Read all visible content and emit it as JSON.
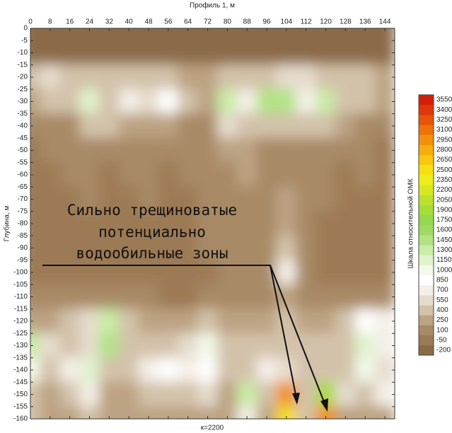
{
  "chart_data": {
    "type": "heatmap",
    "title": "Профиль 1, м",
    "y_label": "Глубина, м",
    "note": "к=2200",
    "annotation": [
      "Сильно трещиноватые",
      "потенциально",
      "водообильные зоны"
    ],
    "xlim": [
      0,
      148
    ],
    "ylim": [
      0,
      -160
    ],
    "xticks": [
      0,
      8,
      16,
      24,
      32,
      40,
      48,
      56,
      64,
      72,
      80,
      88,
      96,
      104,
      112,
      120,
      128,
      136,
      144
    ],
    "yticks": [
      0,
      -5,
      -10,
      -15,
      -20,
      -25,
      -30,
      -35,
      -40,
      -45,
      -50,
      -55,
      -60,
      -65,
      -70,
      -75,
      -80,
      -85,
      -90,
      -95,
      -100,
      -105,
      -110,
      -115,
      -120,
      -125,
      -130,
      -135,
      -140,
      -145,
      -150,
      -155,
      -160
    ],
    "x": [
      0,
      8,
      16,
      24,
      32,
      40,
      48,
      56,
      64,
      72,
      80,
      88,
      96,
      104,
      112,
      120,
      128,
      136,
      144
    ],
    "y": [
      0,
      -10,
      -20,
      -30,
      -40,
      -50,
      -60,
      -70,
      -80,
      -90,
      -100,
      -110,
      -120,
      -130,
      -140,
      -150,
      -160
    ],
    "z": [
      [
        -150,
        -150,
        -150,
        -150,
        -150,
        -150,
        -150,
        -150,
        -150,
        -150,
        -150,
        -150,
        -150,
        -150,
        -150,
        -150,
        -150,
        -150,
        -150
      ],
      [
        -100,
        -100,
        -100,
        -100,
        -100,
        -100,
        -100,
        -100,
        -100,
        -100,
        -100,
        -100,
        -100,
        -100,
        -100,
        -100,
        -100,
        -100,
        -100
      ],
      [
        500,
        600,
        500,
        500,
        400,
        500,
        500,
        400,
        300,
        300,
        400,
        500,
        500,
        600,
        600,
        500,
        500,
        400,
        300
      ],
      [
        300,
        400,
        500,
        1200,
        500,
        700,
        600,
        900,
        400,
        300,
        1400,
        700,
        1500,
        1500,
        700,
        1300,
        500,
        400,
        300
      ],
      [
        100,
        200,
        200,
        400,
        500,
        300,
        300,
        300,
        200,
        200,
        600,
        400,
        400,
        500,
        400,
        400,
        300,
        200,
        100
      ],
      [
        0,
        100,
        100,
        200,
        100,
        100,
        200,
        100,
        100,
        200,
        300,
        300,
        200,
        200,
        100,
        100,
        100,
        100,
        0
      ],
      [
        0,
        0,
        100,
        100,
        0,
        100,
        100,
        0,
        100,
        200,
        200,
        300,
        100,
        200,
        100,
        100,
        0,
        100,
        0
      ],
      [
        0,
        0,
        0,
        100,
        0,
        0,
        100,
        0,
        0,
        100,
        100,
        200,
        100,
        300,
        100,
        100,
        0,
        0,
        0
      ],
      [
        0,
        0,
        0,
        0,
        0,
        0,
        0,
        0,
        0,
        100,
        100,
        200,
        100,
        300,
        100,
        0,
        0,
        0,
        0
      ],
      [
        0,
        0,
        0,
        0,
        0,
        0,
        0,
        0,
        0,
        100,
        100,
        200,
        100,
        400,
        100,
        0,
        0,
        0,
        0
      ],
      [
        0,
        0,
        0,
        0,
        0,
        0,
        0,
        0,
        0,
        0,
        100,
        200,
        100,
        700,
        100,
        0,
        0,
        0,
        0
      ],
      [
        100,
        100,
        100,
        100,
        100,
        100,
        100,
        0,
        0,
        100,
        100,
        200,
        100,
        300,
        200,
        200,
        200,
        200,
        100
      ],
      [
        300,
        300,
        400,
        600,
        1400,
        500,
        300,
        300,
        300,
        400,
        300,
        300,
        300,
        400,
        300,
        300,
        400,
        900,
        700
      ],
      [
        1400,
        600,
        500,
        600,
        1500,
        500,
        400,
        500,
        600,
        1000,
        500,
        500,
        400,
        500,
        400,
        400,
        500,
        1200,
        800
      ],
      [
        1100,
        500,
        700,
        1200,
        500,
        400,
        700,
        900,
        800,
        900,
        500,
        500,
        700,
        600,
        500,
        500,
        500,
        1000,
        600
      ],
      [
        500,
        300,
        500,
        800,
        300,
        300,
        400,
        400,
        400,
        600,
        300,
        1300,
        500,
        3000,
        500,
        2000,
        600,
        400,
        700
      ],
      [
        400,
        300,
        300,
        400,
        300,
        300,
        300,
        300,
        300,
        300,
        300,
        700,
        300,
        2600,
        400,
        3000,
        300,
        300,
        300
      ]
    ],
    "colorbar": {
      "label": "Шкала относительной ОМК",
      "ticks": [
        -200,
        -50,
        100,
        250,
        400,
        550,
        700,
        850,
        1000,
        1150,
        1300,
        1450,
        1600,
        1750,
        1900,
        2050,
        2200,
        2350,
        2500,
        2650,
        2800,
        2950,
        3100,
        3250,
        3400,
        3550
      ],
      "colors": [
        "#8b6a48",
        "#9c7a55",
        "#a88a66",
        "#bca383",
        "#d3c2aa",
        "#e6dccd",
        "#f4efe8",
        "#ffffff",
        "#f2faea",
        "#e0f3cc",
        "#c9eca6",
        "#b2e383",
        "#9fdb63",
        "#96d84e",
        "#a6dc3a",
        "#bde22e",
        "#d6e823",
        "#eeee1a",
        "#f8e010",
        "#f9c80e",
        "#f7ad0c",
        "#f3900b",
        "#ee720a",
        "#e6540a",
        "#dd370a",
        "#d41e0a"
      ]
    }
  }
}
